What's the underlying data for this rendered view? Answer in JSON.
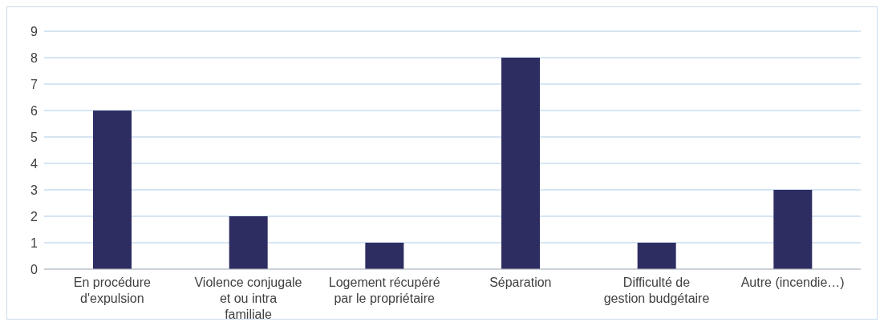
{
  "chart_data": {
    "type": "bar",
    "categories": [
      "En procédure d'expulsion",
      "Violence conjugale et ou intra familiale",
      "Logement récupéré par le propriétaire",
      "Séparation",
      "Difficulté de gestion budgétaire",
      "Autre (incendie…)"
    ],
    "values": [
      6,
      2,
      1,
      8,
      1,
      3
    ],
    "color": "#2e2d62",
    "ylim": [
      0,
      9
    ],
    "yticks": [
      0,
      1,
      2,
      3,
      4,
      5,
      6,
      7,
      8,
      9
    ],
    "grid": "y",
    "legend": false
  }
}
